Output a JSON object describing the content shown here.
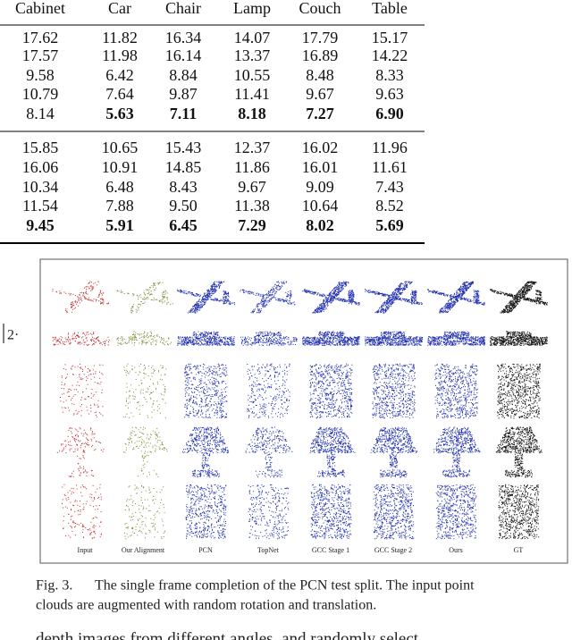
{
  "table": {
    "header": [
      "Cabinet",
      "Car",
      "Chair",
      "Lamp",
      "Couch",
      "Table"
    ],
    "rows": [
      [
        "17.62",
        "11.82",
        "16.34",
        "14.07",
        "17.79",
        "15.17"
      ],
      [
        "17.57",
        "11.98",
        "16.14",
        "13.37",
        "16.89",
        "14.22"
      ],
      [
        "9.58",
        "6.42",
        "8.84",
        "10.55",
        "8.48",
        "8.33"
      ],
      [
        "10.79",
        "7.64",
        "9.87",
        "11.41",
        "9.67",
        "9.63"
      ],
      [
        "8.14",
        "5.63",
        "7.11",
        "8.18",
        "7.27",
        "6.90"
      ],
      [
        "15.85",
        "10.65",
        "15.43",
        "12.37",
        "16.02",
        "11.96"
      ],
      [
        "16.06",
        "10.91",
        "14.85",
        "11.86",
        "16.01",
        "11.61"
      ],
      [
        "10.34",
        "6.48",
        "8.43",
        "9.67",
        "9.09",
        "7.43"
      ],
      [
        "11.54",
        "7.88",
        "9.50",
        "11.38",
        "10.64",
        "8.52"
      ],
      [
        "9.45",
        "5.91",
        "6.45",
        "7.29",
        "8.02",
        "5.69"
      ]
    ]
  },
  "fragment": "2·",
  "figure": {
    "labels": [
      "Input",
      "Our Alignment",
      "PCN",
      "TopNet",
      "GCC Stage 1",
      "GCC Stage 2",
      "Ours",
      "GT"
    ],
    "caption_label": "Fig. 3.",
    "caption_lines": [
      "The single frame completion of the PCN test split. The input point",
      "clouds are augmented with random rotation and translation."
    ]
  },
  "body_text": "depth images from different angles, and randomly select"
}
